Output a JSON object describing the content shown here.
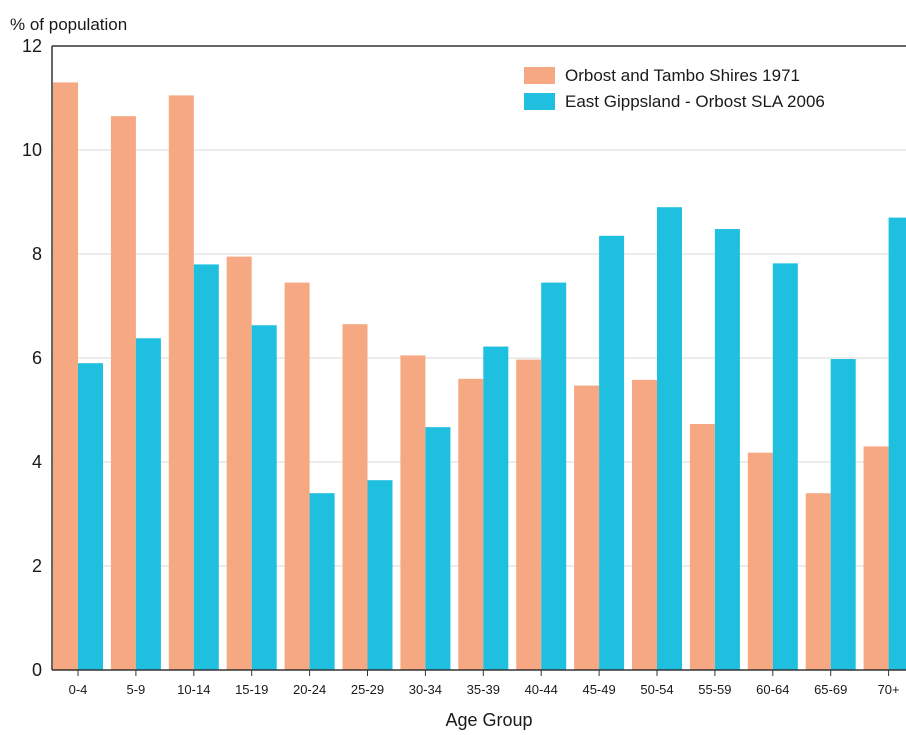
{
  "chart_data": {
    "type": "bar",
    "ylabel": "% of population",
    "xlabel": "Age Group",
    "ylim": [
      0,
      12
    ],
    "yticks": [
      "0",
      "2",
      "4",
      "6",
      "8",
      "10",
      "12"
    ],
    "grid": true,
    "legend_position": "top-right",
    "categories": [
      "0-4",
      "5-9",
      "10-14",
      "15-19",
      "20-24",
      "25-29",
      "30-34",
      "35-39",
      "40-44",
      "45-49",
      "50-54",
      "55-59",
      "60-64",
      "65-69",
      "70+"
    ],
    "series": [
      {
        "name": "Orbost and Tambo Shires 1971",
        "color": "#f5a882",
        "values": [
          11.3,
          10.65,
          11.05,
          7.95,
          7.45,
          6.65,
          6.05,
          5.6,
          5.97,
          5.47,
          5.58,
          4.73,
          4.18,
          3.4,
          4.3
        ]
      },
      {
        "name": "East Gippsland - Orbost SLA 2006",
        "color": "#1fbfe0",
        "values": [
          5.9,
          6.38,
          7.8,
          6.63,
          3.4,
          3.65,
          4.67,
          6.22,
          7.45,
          8.35,
          8.9,
          8.48,
          7.82,
          5.98,
          8.7
        ]
      }
    ]
  }
}
